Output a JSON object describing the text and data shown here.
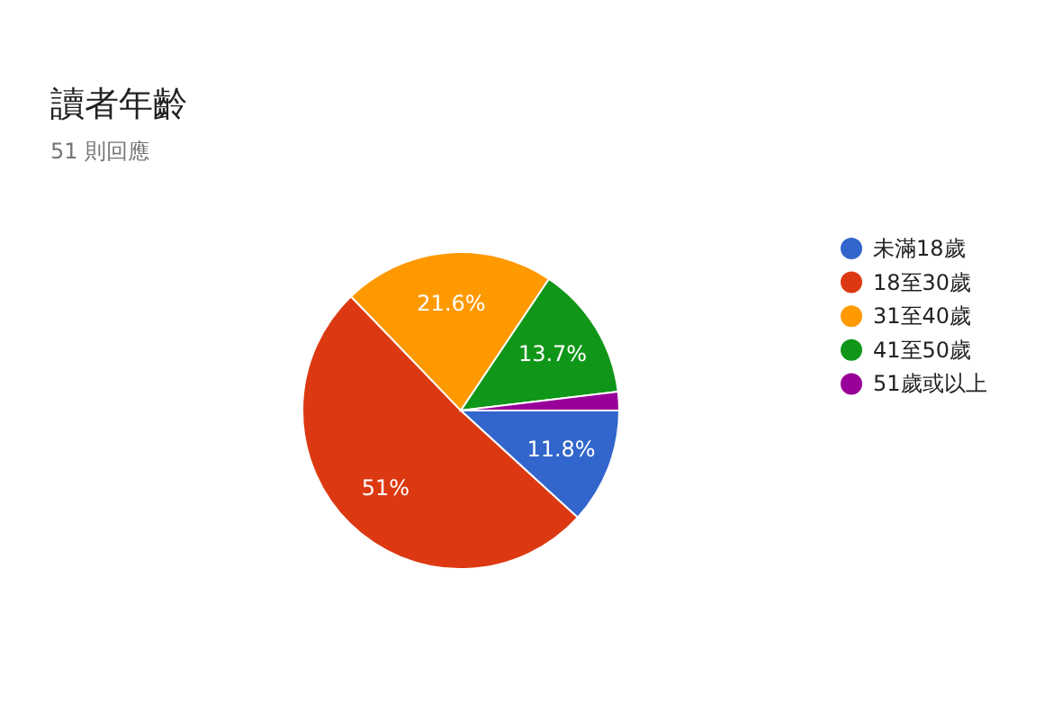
{
  "chart_data": {
    "type": "pie",
    "title": "讀者年齡",
    "subtitle": "51 則回應",
    "categories": [
      "未滿18歲",
      "18至30歲",
      "31至40歲",
      "41至50歲",
      "51歲或以上"
    ],
    "values": [
      11.8,
      51,
      21.6,
      13.7,
      1.9
    ],
    "value_labels": [
      "11.8%",
      "51%",
      "21.6%",
      "13.7%",
      null
    ],
    "colors": [
      "#3366cc",
      "#dc3912",
      "#ff9900",
      "#109618",
      "#990099"
    ],
    "legend": "right"
  }
}
